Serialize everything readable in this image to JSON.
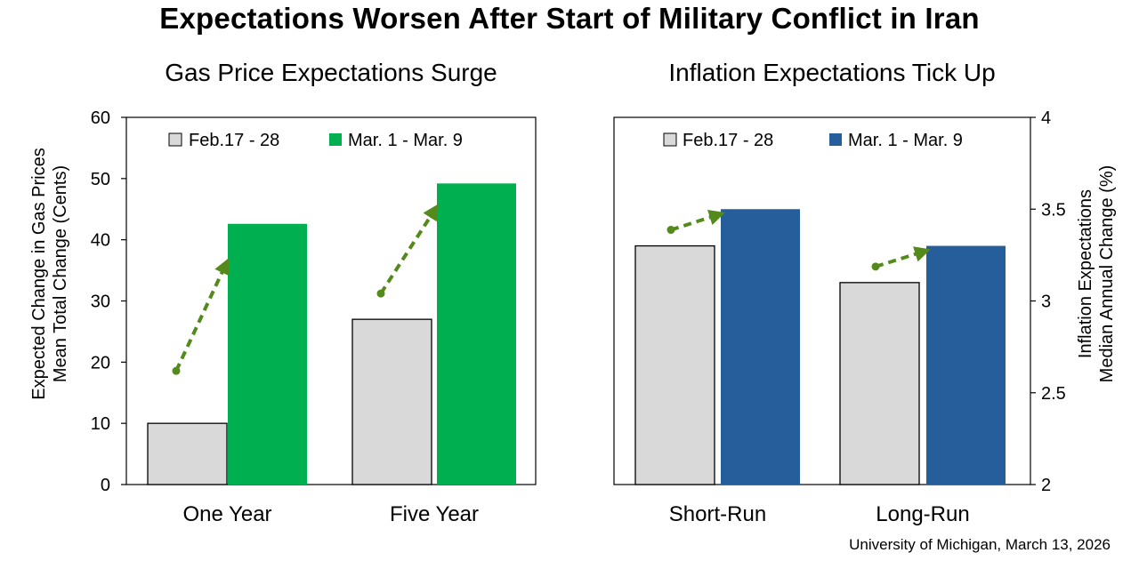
{
  "title": "Expectations Worsen After Start of Military Conflict in Iran",
  "source": "University of Michigan, March 13, 2026",
  "colors": {
    "gray": "#d9d9d9",
    "green": "#00b050",
    "blue": "#255e9b",
    "arrow": "#548a1c",
    "axis": "#000000"
  },
  "chart_data": [
    {
      "type": "bar",
      "title": "Gas Price Expectations Surge",
      "ylabel": [
        "Expected Change in Gas Prices",
        "Mean Total Change (Cents)"
      ],
      "y_axis_side": "left",
      "ylim": [
        0,
        60
      ],
      "yticks": [
        0,
        10,
        20,
        30,
        40,
        50,
        60
      ],
      "categories": [
        "One Year",
        "Five Year"
      ],
      "series": [
        {
          "name": "Feb.17 - 28",
          "color": "#d9d9d9",
          "values": [
            10,
            27
          ]
        },
        {
          "name": "Mar. 1 - Mar. 9",
          "color": "#00b050",
          "values": [
            42.6,
            49.2
          ]
        }
      ],
      "legend": "top",
      "annotations": "dashed green arrows indicating increase"
    },
    {
      "type": "bar",
      "title": "Inflation Expectations Tick Up",
      "ylabel": [
        "Inflation Expectations",
        "Median Annual Change (%)"
      ],
      "y_axis_side": "right",
      "ylim": [
        2,
        4
      ],
      "yticks": [
        "2",
        "2.5",
        "3",
        "3.5",
        "4"
      ],
      "categories": [
        "Short-Run",
        "Long-Run"
      ],
      "series": [
        {
          "name": "Feb.17 - 28",
          "color": "#d9d9d9",
          "values": [
            3.3,
            3.1
          ]
        },
        {
          "name": "Mar. 1 - Mar. 9",
          "color": "#255e9b",
          "values": [
            3.5,
            3.3
          ]
        }
      ],
      "legend": "top",
      "annotations": "dashed green arrows indicating increase"
    }
  ]
}
